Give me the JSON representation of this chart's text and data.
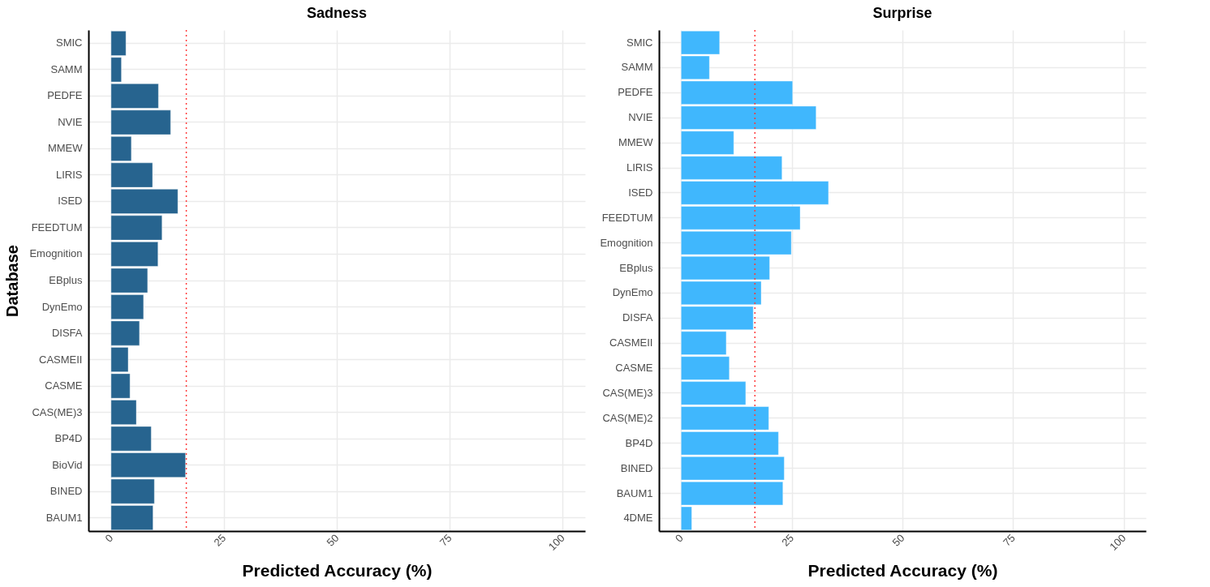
{
  "chart_data": [
    {
      "type": "bar",
      "orientation": "horizontal",
      "title": "Sadness",
      "xlabel": "Predicted Accuracy (%)",
      "ylabel": "Database",
      "categories": [
        "SMIC",
        "SAMM",
        "PEDFE",
        "NVIE",
        "MMEW",
        "LIRIS",
        "ISED",
        "FEEDTUM",
        "Emognition",
        "EBplus",
        "DynEmo",
        "DISFA",
        "CASMEII",
        "CASME",
        "CAS(ME)3",
        "BP4D",
        "BioVid",
        "BINED",
        "BAUM1"
      ],
      "values": [
        3.3,
        2.3,
        10.5,
        13.2,
        4.5,
        9.2,
        14.8,
        11.3,
        10.4,
        8.1,
        7.2,
        6.3,
        3.8,
        4.2,
        5.6,
        8.9,
        16.5,
        9.6,
        9.3
      ],
      "color": "#27648f",
      "xlim": [
        -5,
        105
      ],
      "xticks": [
        0,
        25,
        50,
        75,
        100
      ],
      "grid": true,
      "ref_lines": [
        {
          "axis": "x",
          "value": 16.67,
          "color": "#ff3b3b",
          "line_style": "dotted"
        }
      ]
    },
    {
      "type": "bar",
      "orientation": "horizontal",
      "title": "Surprise",
      "xlabel": "Predicted Accuracy (%)",
      "categories": [
        "SMIC",
        "SAMM",
        "PEDFE",
        "NVIE",
        "MMEW",
        "LIRIS",
        "ISED",
        "FEEDTUM",
        "Emognition",
        "EBplus",
        "DynEmo",
        "DISFA",
        "CASMEII",
        "CASME",
        "CAS(ME)3",
        "CAS(ME)2",
        "BP4D",
        "BINED",
        "BAUM1",
        "4DME"
      ],
      "values": [
        8.7,
        6.4,
        25.2,
        30.5,
        11.9,
        22.8,
        33.3,
        26.9,
        24.9,
        20.0,
        18.1,
        16.3,
        10.2,
        10.9,
        14.6,
        19.8,
        22.0,
        23.3,
        23.0,
        2.4
      ],
      "color": "#40b7fd",
      "xlim": [
        -5,
        105
      ],
      "xticks": [
        0,
        25,
        50,
        75,
        100
      ],
      "grid": true,
      "ref_lines": [
        {
          "axis": "x",
          "value": 16.67,
          "color": "#ff3b3b",
          "line_style": "dotted"
        }
      ]
    }
  ]
}
